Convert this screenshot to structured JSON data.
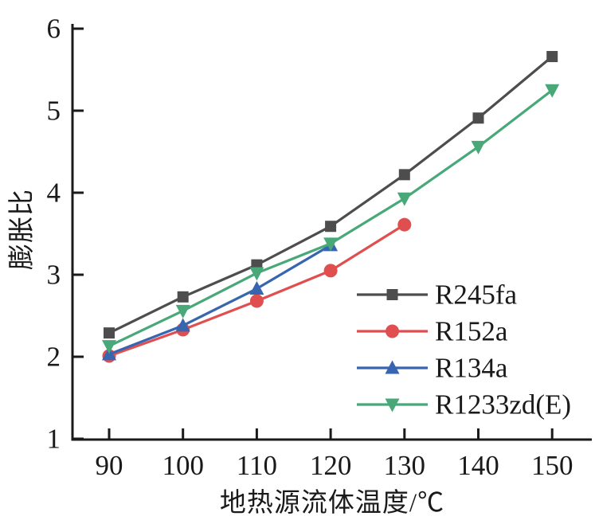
{
  "chart_data": {
    "type": "line",
    "title": "",
    "xlabel": "地热源流体温度/℃",
    "ylabel": "膨胀比",
    "xticks": [
      90,
      100,
      110,
      120,
      130,
      140,
      150
    ],
    "yticks": [
      1,
      2,
      3,
      4,
      5,
      6
    ],
    "xlim": [
      85,
      155.3
    ],
    "ylim": [
      0.97,
      6.07
    ],
    "grid": false,
    "legend_position": "inside lower right",
    "series": [
      {
        "name": "R245fa",
        "color": "#4d4d4d",
        "marker": "square",
        "x": [
          90,
          100,
          110,
          120,
          130,
          140,
          150
        ],
        "values": [
          2.29,
          2.73,
          3.12,
          3.59,
          4.22,
          4.91,
          5.66
        ]
      },
      {
        "name": "R152a",
        "color": "#e04f50",
        "marker": "circle",
        "x": [
          90,
          100,
          110,
          120,
          130
        ],
        "values": [
          2.01,
          2.33,
          2.68,
          3.05,
          3.61
        ]
      },
      {
        "name": "R134a",
        "color": "#3765b0",
        "marker": "triangle-up",
        "x": [
          90,
          100,
          110,
          120
        ],
        "values": [
          2.03,
          2.38,
          2.83,
          3.36
        ]
      },
      {
        "name": "R1233zd(E)",
        "color": "#48a877",
        "marker": "triangle-down",
        "x": [
          90,
          100,
          110,
          120,
          130,
          140,
          150
        ],
        "values": [
          2.13,
          2.56,
          3.02,
          3.38,
          3.93,
          4.56,
          5.25
        ]
      }
    ]
  },
  "style": {
    "axis_color": "#1a1a1a",
    "background": "#ffffff"
  }
}
